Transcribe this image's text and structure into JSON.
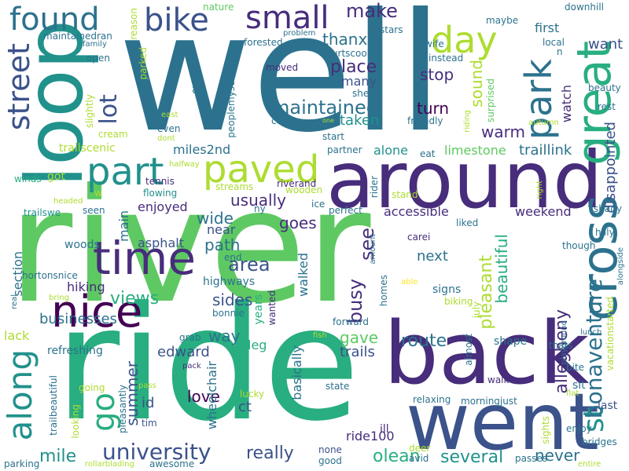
{
  "palette": {
    "c1": "#440154",
    "c2": "#472d7b",
    "c3": "#3b528b",
    "c4": "#2c728e",
    "c5": "#21918c",
    "c6": "#28ae80",
    "c7": "#5ec962",
    "c8": "#addc30",
    "c9": "#fde725"
  },
  "words": {
    "well": "well",
    "river": "river",
    "ride": "ride",
    "around": "around",
    "back": "back",
    "went": "went",
    "loop": "loop",
    "time": "time",
    "nice": "nice",
    "paved": "paved",
    "part": "part",
    "cross": "cross",
    "great": "great",
    "day": "day",
    "park": "park",
    "found": "found",
    "bike": "bike",
    "small": "small",
    "street": "street",
    "along": "along",
    "go": "go",
    "university": "university",
    "bonaventure": "bonaventure",
    "st": "st",
    "maintained": "maintained",
    "place": "place",
    "make": "make",
    "usually": "usually",
    "area": "area",
    "views": "views",
    "route": "route",
    "several": "several",
    "mile": "mile",
    "really": "really",
    "olean": "olean",
    "never": "never",
    "love": "love",
    "summer": "summer",
    "edward": "edward",
    "gave": "gave",
    "trails": "trails",
    "busy": "busy",
    "see": "see",
    "next": "next",
    "goes": "goes",
    "wide": "wide",
    "path": "path",
    "near": "near",
    "sides": "sides",
    "way": "way",
    "warm": "warm",
    "beautiful": "beautiful",
    "pleasant": "pleasant",
    "allegheny": "allegheny",
    "accessible": "accessible",
    "weekend": "weekend",
    "turn": "turn",
    "stop": "stop",
    "lot": "lot",
    "want": "want",
    "watch": "watch",
    "sound": "sound",
    "thanx": "thanx",
    "limestone": "limestone",
    "traillink": "traillink",
    "alone": "alone",
    "disappointed": "disappointed",
    "miles2nd": "miles2nd",
    "hiking": "hiking",
    "asphalt": "asphalt",
    "section": "section",
    "main": "main",
    "businesses": "businesses",
    "enjoyed": "enjoyed",
    "highways": "highways",
    "ride100": "ride100",
    "first": "first",
    "taken": "taken",
    "many": "many",
    "walked": "walked",
    "shape": "shape",
    "signs": "signs",
    "basically": "basically",
    "ct": "ct",
    "id": "id",
    "leg": "leg",
    "wheelchair": "wheelchair",
    "lack": "lack",
    "last": "last",
    "sit": "sit",
    "enjoy": "enjoy",
    "ill": "ill",
    "years": "years",
    "forward": "forward",
    "walk": "walk",
    "bridges": "bridges",
    "downhill": "downhill",
    "local": "local",
    "n": "n",
    "maybe": "maybe",
    "instead": "instead",
    "stars": "stars",
    "wife": "wife",
    "reason": "reason",
    "nature": "nature",
    "family": "family",
    "open": "open",
    "maintainedran": "maintainedran",
    "courtscool": "courtscool",
    "problem": "problem",
    "forested": "forested",
    "moved": "moved",
    "shes": "shes",
    "coffee": "coffee",
    "friendly": "friendly",
    "riding": "riding",
    "surprised": "surprised",
    "autumn": "autumn",
    "rest": "rest",
    "beauty": "beauty",
    "start": "start",
    "partner": "partner",
    "eat": "eat",
    "one": "one",
    "even": "even",
    "east": "east",
    "dont": "dont",
    "peoplemyself": "peoplemyself",
    "crosses": "crosses",
    "parked": "parked",
    "slightly": "slightly",
    "cream": "cream",
    "trailscenic": "trailscenic",
    "halfway": "halfway",
    "winds": "winds",
    "got": "got",
    "tennis": "tennis",
    "flowing": "flowing",
    "riverand": "riverand",
    "streams": "streams",
    "wooden": "wooden",
    "rider": "rider",
    "stand": "stand",
    "carei": "carei",
    "ice": "ice",
    "perfect": "perfect",
    "liked": "liked",
    "shady": "shady",
    "hilly": "hilly",
    "though": "though",
    "alongside": "alongside",
    "trailswe": "trailswe",
    "headed": "headed",
    "seen": "seen",
    "w": "w",
    "woods": "woods",
    "hortonsnice": "hortonsnice",
    "bonnie": "bonnie",
    "end": "end",
    "ny": "ny",
    "amount": "amount",
    "homes": "homes",
    "able": "able",
    "biking": "biking",
    "july": "july",
    "right": "right",
    "real": "real",
    "wanted": "wanted",
    "bring": "bring",
    "refreshing": "refreshing",
    "grab": "grab",
    "fish": "fish",
    "almost": "almost",
    "thats": "thats",
    "lunch": "lunch",
    "playground": "playground",
    "vacationstarted": "vacationstarted",
    "bite": "bite",
    "flat": "flat",
    "sights": "sights",
    "pack": "pack",
    "pleasantly": "pleasantly",
    "going": "going",
    "pass": "pass",
    "lucky": "lucky",
    "state": "state",
    "relaxing": "relaxing",
    "morningjust": "morningjust",
    "trailbeautiful": "trailbeautiful",
    "looking": "looking",
    "tim": "tim",
    "none": "none",
    "deer": "deer",
    "good": "good",
    "avid": "avid",
    "passes": "passes",
    "parking": "parking",
    "rollarblading": "rollarblading",
    "awesome": "awesome",
    "entire": "entire"
  }
}
